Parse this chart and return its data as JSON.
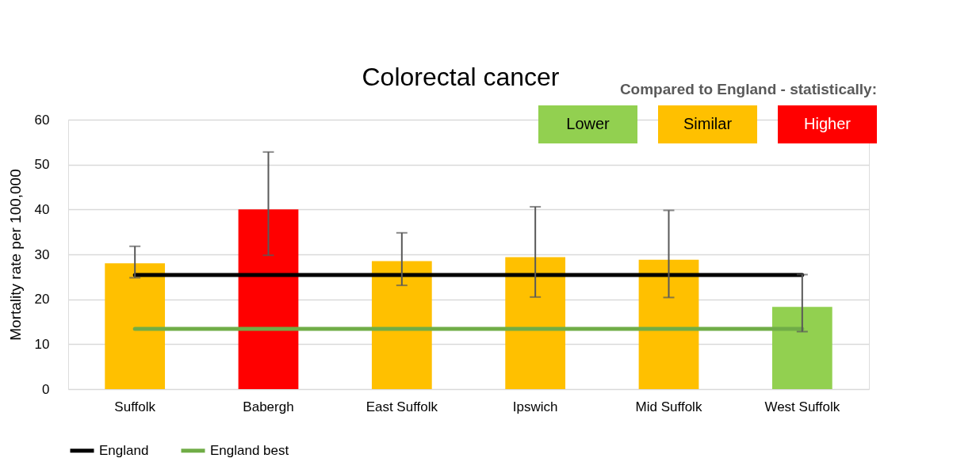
{
  "chart_data": {
    "type": "bar",
    "title": "Colorectal cancer",
    "ylabel": "Mortality rate per 100,000",
    "legend_title": "Compared to England - statistically:",
    "categories": [
      "Suffolk",
      "Babergh",
      "East Suffolk",
      "Ipswich",
      "Mid Suffolk",
      "West Suffolk"
    ],
    "series": [
      {
        "name": "Lower",
        "color": "#92d050",
        "values": [
          null,
          null,
          null,
          null,
          null,
          18.3
        ],
        "errors": [
          null,
          null,
          null,
          null,
          null,
          [
            12.8,
            25.5
          ]
        ]
      },
      {
        "name": "Similar",
        "color": "#ffc000",
        "values": [
          28.0,
          null,
          28.5,
          29.4,
          28.8,
          null
        ],
        "errors": [
          [
            24.8,
            31.8
          ],
          null,
          [
            23.1,
            34.8
          ],
          [
            20.5,
            40.6
          ],
          [
            20.4,
            39.8
          ],
          null
        ]
      },
      {
        "name": "Higher",
        "color": "#ff0000",
        "values": [
          null,
          40.0,
          null,
          null,
          null,
          null
        ],
        "errors": [
          null,
          [
            29.8,
            52.8
          ],
          null,
          null,
          null,
          null
        ]
      },
      {
        "name": "England",
        "type": "line",
        "color": "#000000",
        "values": [
          25.4,
          25.4,
          25.4,
          25.4,
          25.4,
          25.4
        ]
      },
      {
        "name": "England best",
        "type": "line",
        "color": "#70ad47",
        "values": [
          13.4,
          13.4,
          13.4,
          13.4,
          13.4,
          13.4
        ]
      }
    ],
    "ylim": [
      0,
      60
    ],
    "yticks": [
      0,
      10,
      20,
      30,
      40,
      50,
      60
    ],
    "grid": "y",
    "legend": "bottom"
  }
}
